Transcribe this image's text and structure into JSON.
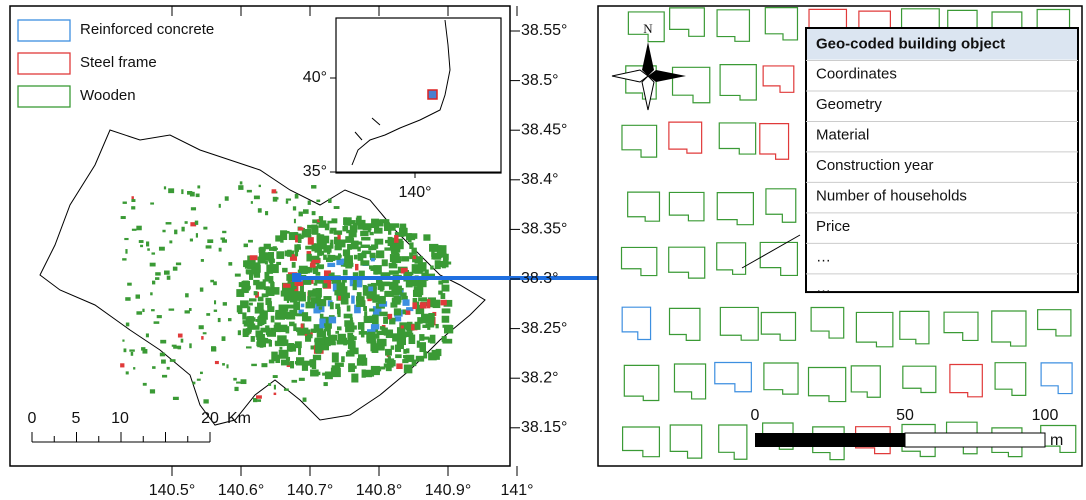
{
  "legend": [
    "Reinforced concrete",
    "Steel frame",
    "Wooden"
  ],
  "lon_labels": [
    "140.5°",
    "140.6°",
    "140.7°",
    "140.8°",
    "140.9°",
    "141°"
  ],
  "lat_labels": [
    "38.55°",
    "38.5°",
    "38.45°",
    "38.4°",
    "38.35°",
    "38.3°",
    "38.25°",
    "38.2°",
    "38.15°"
  ],
  "inset": {
    "lat_labels": [
      "40°",
      "35°"
    ],
    "lon_label": "140°"
  },
  "scale_left": {
    "ticks": [
      "0",
      "5",
      "10",
      "20"
    ],
    "unit": "Km"
  },
  "scale_right": {
    "ticks": [
      "0",
      "50",
      "100"
    ],
    "unit": "m"
  },
  "north": "N",
  "attribute_table": {
    "header": "Geo-coded building object",
    "rows": [
      "Coordinates",
      "Geometry",
      "Material",
      "Construction year",
      "Number of households",
      "Price",
      "…",
      "…"
    ]
  }
}
